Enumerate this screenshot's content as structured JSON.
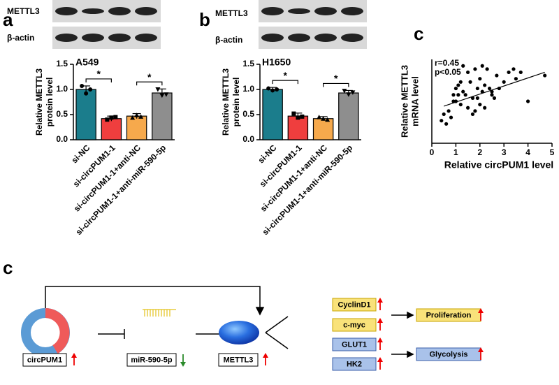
{
  "panels": [
    {
      "label": "a",
      "blots": [
        "METTL3",
        "β-actin"
      ]
    },
    {
      "label": "b",
      "blots": [
        "METTL3",
        "β-actin"
      ]
    },
    {
      "label": "c"
    }
  ],
  "chart_data": [
    {
      "type": "bar",
      "title": "A549",
      "ylabel": [
        "Relative METTL3",
        "protein level"
      ],
      "categories": [
        "si-NC",
        "si-circPUM1-1",
        "si-circPUM1-1+anti-NC",
        "si-circPUM1-1+anti-miR-590-5p"
      ],
      "values": [
        1.0,
        0.42,
        0.47,
        0.93
      ],
      "errors": [
        0.07,
        0.05,
        0.05,
        0.08
      ],
      "points": [
        [
          1.07,
          0.92,
          1.0
        ],
        [
          0.4,
          0.44,
          0.45
        ],
        [
          0.44,
          0.49,
          0.46
        ],
        [
          1.0,
          0.88,
          0.9
        ]
      ],
      "colors": [
        "#1b7d8c",
        "#ef3e3e",
        "#f6a94c",
        "#8e8e8e"
      ],
      "ylim": [
        0,
        1.5
      ],
      "yticks": [
        {
          "value": 0,
          "label": "0.0"
        },
        {
          "value": 0.5,
          "label": "0.5"
        },
        {
          "value": 1,
          "label": "1.0"
        },
        {
          "value": 1.5,
          "label": "1.5"
        }
      ],
      "annotations": [
        "*",
        "*"
      ]
    },
    {
      "type": "bar",
      "title": "H1650",
      "ylabel": [
        "Relative METTL3",
        "protein level"
      ],
      "categories": [
        "si-NC",
        "si-circPUM1-1",
        "si-circPUM1-1+anti-NC",
        "si-circPUM1-1+anti-miR-590-5p"
      ],
      "values": [
        1.0,
        0.47,
        0.42,
        0.93
      ],
      "errors": [
        0.04,
        0.06,
        0.04,
        0.05
      ],
      "points": [
        [
          1.02,
          0.98,
          1.0
        ],
        [
          0.52,
          0.44,
          0.46
        ],
        [
          0.45,
          0.42,
          0.4
        ],
        [
          0.97,
          0.9,
          0.94
        ]
      ],
      "colors": [
        "#1b7d8c",
        "#ef3e3e",
        "#f6a94c",
        "#8e8e8e"
      ],
      "ylim": [
        0,
        1.5
      ],
      "yticks": [
        {
          "value": 0,
          "label": "0.0"
        },
        {
          "value": 0.5,
          "label": "0.5"
        },
        {
          "value": 1,
          "label": "1.0"
        },
        {
          "value": 1.5,
          "label": "1.5"
        }
      ],
      "annotations": [
        "*",
        "*"
      ]
    },
    {
      "type": "scatter",
      "xlabel": "Relative circPUM1 level",
      "ylabel": [
        "Relative METTL3",
        "mRNA level"
      ],
      "annotations": [
        "r=0.45",
        "p<0.05"
      ],
      "color": "#000000",
      "x": [
        0.4,
        0.5,
        0.6,
        0.7,
        0.8,
        0.9,
        1.0,
        1.0,
        1.1,
        1.1,
        1.2,
        1.2,
        1.3,
        1.4,
        1.5,
        1.5,
        1.6,
        1.7,
        1.8,
        1.8,
        1.9,
        1.9,
        2.0,
        2.0,
        2.1,
        2.1,
        2.2,
        2.3,
        2.4,
        2.5,
        2.6,
        2.7,
        2.8,
        3.0,
        3.2,
        3.4,
        3.5,
        3.7,
        4.0,
        4.7,
        0.9,
        1.3,
        1.7,
        2.2,
        2.5
      ],
      "y": [
        0.7,
        0.9,
        0.6,
        1.0,
        0.8,
        1.5,
        1.7,
        1.3,
        1.8,
        1.5,
        1.9,
        1.2,
        1.6,
        1.5,
        2.2,
        1.1,
        1.9,
        1.4,
        2.3,
        1.0,
        1.7,
        1.4,
        2.0,
        1.2,
        2.4,
        1.6,
        1.1,
        2.3,
        1.7,
        1.5,
        1.4,
        2.1,
        1.7,
        1.9,
        2.2,
        2.3,
        2.0,
        2.2,
        1.3,
        2.1,
        1.3,
        2.4,
        0.9,
        1.8,
        1.6
      ],
      "trendline": {
        "x": [
          0.5,
          4.7
        ],
        "y": [
          1.15,
          2.2
        ]
      },
      "xlim": [
        0,
        5
      ],
      "xticks": [
        0,
        1,
        2,
        3,
        4,
        5
      ],
      "ylim": [
        0,
        2.6
      ]
    }
  ],
  "diagram": {
    "label": "c",
    "circrna": "circPUM1",
    "mirna": "miR-590-5p",
    "protein": "METTL3",
    "targets": [
      "CyclinD1",
      "c-myc",
      "GLUT1",
      "HK2"
    ],
    "outcomes": [
      "Proliferation",
      "Glycolysis"
    ]
  }
}
